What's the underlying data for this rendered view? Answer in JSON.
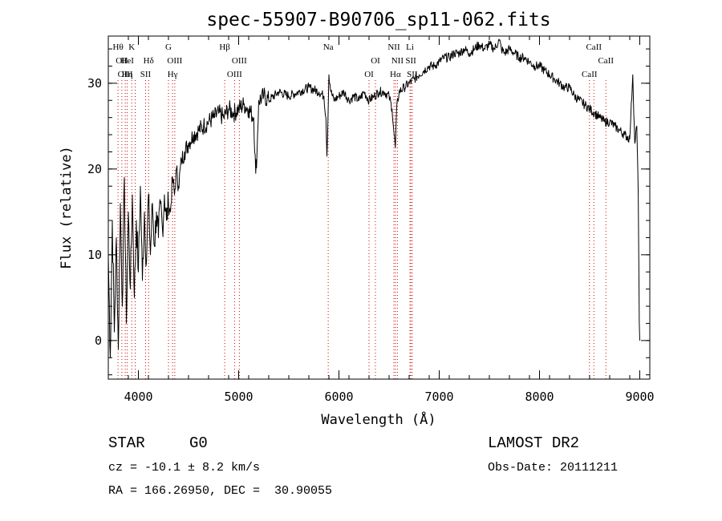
{
  "chart_data": {
    "type": "line",
    "title": "spec-55907-B90706_sp11-062.fits",
    "xlabel": "Wavelength (Å)",
    "ylabel": "Flux (relative)",
    "xlim": [
      3700,
      9100
    ],
    "ylim": [
      -4.5,
      35.5
    ],
    "x_ticks": [
      4000,
      5000,
      6000,
      7000,
      8000,
      9000
    ],
    "y_ticks": [
      0,
      10,
      20,
      30
    ],
    "x_minor_step": 200,
    "y_minor_step": 2,
    "grid": false,
    "line_color": "#000000",
    "marker_color": "#cc0000",
    "series": [
      {
        "x": [
          3700,
          3720,
          3740,
          3760,
          3780,
          3800,
          3820,
          3840,
          3860,
          3880,
          3900,
          3920,
          3940,
          3960,
          3980,
          4000,
          4020,
          4040,
          4060,
          4080,
          4100,
          4120,
          4140,
          4160,
          4180,
          4200,
          4220,
          4240,
          4260,
          4280,
          4300,
          4320,
          4340,
          4360,
          4380,
          4400,
          4430,
          4460,
          4500,
          4550,
          4600,
          4650,
          4700,
          4750,
          4800,
          4850,
          4900,
          4950,
          5000,
          5050,
          5100,
          5150,
          5170,
          5183,
          5200,
          5250,
          5300,
          5400,
          5500,
          5600,
          5700,
          5800,
          5850,
          5870,
          5880,
          5893,
          5900,
          5920,
          5950,
          6000,
          6050,
          6100,
          6150,
          6200,
          6250,
          6300,
          6350,
          6400,
          6450,
          6500,
          6530,
          6550,
          6563,
          6575,
          6600,
          6650,
          6700,
          6750,
          6800,
          6850,
          6900,
          6950,
          7000,
          7050,
          7100,
          7150,
          7200,
          7250,
          7300,
          7350,
          7400,
          7450,
          7500,
          7550,
          7600,
          7620,
          7650,
          7700,
          7750,
          7800,
          7850,
          7900,
          7950,
          8000,
          8050,
          8100,
          8150,
          8200,
          8250,
          8300,
          8350,
          8400,
          8450,
          8500,
          8550,
          8600,
          8650,
          8700,
          8750,
          8800,
          8850,
          8900,
          8910,
          8930,
          8950,
          8970,
          8985,
          8995,
          9000
        ],
        "y": [
          10,
          -2,
          14,
          1,
          12,
          -1,
          16,
          4,
          19,
          2,
          15,
          6,
          17,
          5,
          14,
          8,
          18,
          7,
          15,
          9,
          17,
          10,
          16,
          11,
          15,
          12,
          16,
          13,
          17,
          14,
          16,
          15,
          19,
          17,
          20,
          18,
          21,
          22,
          23,
          24,
          24.5,
          25,
          25.5,
          26,
          26.5,
          26,
          27,
          26.5,
          27,
          27.5,
          27,
          26,
          19.5,
          22,
          28,
          28.5,
          28,
          29,
          28.5,
          29,
          29.5,
          29,
          28.5,
          26,
          21.5,
          27,
          31,
          29,
          28,
          28.5,
          29,
          28,
          28.5,
          28,
          29,
          28,
          28.5,
          29,
          29,
          28.5,
          27,
          24,
          22.5,
          27,
          29,
          29.5,
          30,
          30.5,
          31,
          31.5,
          32,
          32,
          32.5,
          33,
          33,
          33.5,
          33.5,
          34,
          33.5,
          34,
          34.5,
          34,
          34.5,
          34,
          35,
          34,
          33.5,
          34,
          33.5,
          33,
          33,
          32.5,
          32,
          32,
          31.5,
          31,
          30.5,
          30,
          29.5,
          29.5,
          28.5,
          28,
          27.5,
          27,
          26.5,
          26,
          25.5,
          25.5,
          25,
          24.5,
          24,
          23.5,
          26,
          31,
          23,
          25,
          17,
          2,
          0
        ]
      }
    ],
    "line_markers": [
      {
        "x": 3797,
        "labels": [
          "Hθ"
        ],
        "rows": [
          0
        ]
      },
      {
        "x": 3835,
        "labels": [
          "OII"
        ],
        "rows": [
          1
        ]
      },
      {
        "x": 3869,
        "labels": [
          "OIII"
        ],
        "rows": [
          2
        ]
      },
      {
        "x": 3889,
        "labels": [
          "HeI",
          "Hη"
        ],
        "rows": [
          1,
          2
        ]
      },
      {
        "x": 3934,
        "labels": [
          "K"
        ],
        "rows": [
          0
        ]
      },
      {
        "x": 3968,
        "labels": [],
        "rows": []
      },
      {
        "x": 4072,
        "labels": [
          "SII"
        ],
        "rows": [
          2
        ]
      },
      {
        "x": 4102,
        "labels": [
          "Hδ"
        ],
        "rows": [
          1
        ]
      },
      {
        "x": 4300,
        "labels": [
          "G"
        ],
        "rows": [
          0
        ]
      },
      {
        "x": 4341,
        "labels": [
          "Hγ"
        ],
        "rows": [
          2
        ]
      },
      {
        "x": 4363,
        "labels": [
          "OIII"
        ],
        "rows": [
          1
        ]
      },
      {
        "x": 4861,
        "labels": [
          "Hβ"
        ],
        "rows": [
          0
        ]
      },
      {
        "x": 4959,
        "labels": [
          "OIII"
        ],
        "rows": [
          2
        ]
      },
      {
        "x": 5007,
        "labels": [
          "OIII"
        ],
        "rows": [
          1
        ]
      },
      {
        "x": 5893,
        "labels": [
          "Na"
        ],
        "rows": [
          0
        ]
      },
      {
        "x": 6300,
        "labels": [
          "OI"
        ],
        "rows": [
          2
        ]
      },
      {
        "x": 6364,
        "labels": [
          "OI"
        ],
        "rows": [
          1
        ]
      },
      {
        "x": 6548,
        "labels": [
          "NII"
        ],
        "rows": [
          0
        ]
      },
      {
        "x": 6563,
        "labels": [
          "Hα"
        ],
        "rows": [
          2
        ]
      },
      {
        "x": 6583,
        "labels": [
          "NII"
        ],
        "rows": [
          1
        ]
      },
      {
        "x": 6708,
        "labels": [
          "Li"
        ],
        "rows": [
          0
        ]
      },
      {
        "x": 6717,
        "labels": [
          "SII"
        ],
        "rows": [
          1
        ]
      },
      {
        "x": 6731,
        "labels": [
          "SII"
        ],
        "rows": [
          2
        ]
      },
      {
        "x": 8498,
        "labels": [
          "CaII"
        ],
        "rows": [
          2
        ]
      },
      {
        "x": 8542,
        "labels": [
          "CaII"
        ],
        "rows": [
          0
        ]
      },
      {
        "x": 8662,
        "labels": [
          "CaII"
        ],
        "rows": [
          1
        ]
      }
    ]
  },
  "info": {
    "class": "STAR",
    "subclass": "G0",
    "survey": "LAMOST DR2",
    "velocity": "cz = -10.1 ± 8.2 km/s",
    "obs_date": "Obs-Date: 20111211",
    "coords": "RA = 166.26950, DEC =  30.90055"
  }
}
